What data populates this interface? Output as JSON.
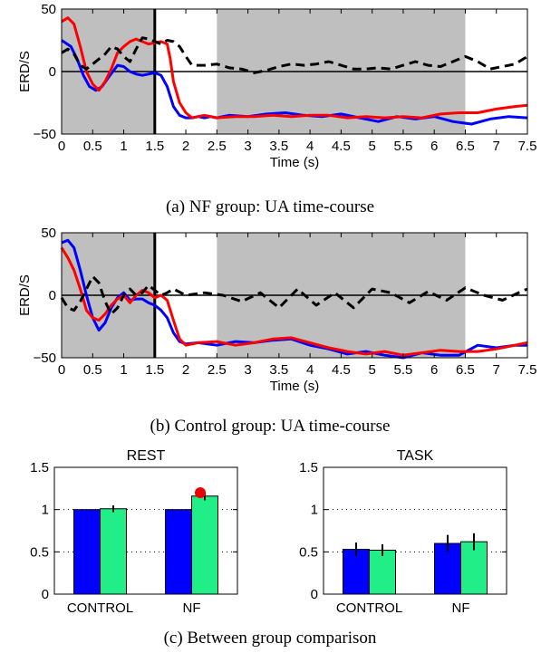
{
  "chart_data": [
    {
      "type": "line",
      "caption": "(a) NF group: UA time-course",
      "xlabel": "Time (s)",
      "ylabel": "ERD/S",
      "xlim": [
        0,
        7.5
      ],
      "ylim": [
        -50,
        50
      ],
      "xticks": [
        0,
        0.5,
        1,
        1.5,
        2,
        2.5,
        3,
        3.5,
        4,
        4.5,
        5,
        5.5,
        6,
        6.5,
        7,
        7.5
      ],
      "xtick_labels": [
        "0",
        "0.5",
        "1",
        "1.5",
        "2",
        "2.5",
        "3",
        "3.5",
        "4",
        "4.5",
        "5",
        "5.5",
        "6",
        "6.5",
        "7",
        "7.5"
      ],
      "yticks": [
        -50,
        0,
        50
      ],
      "ytick_labels": [
        "−50",
        "0",
        "50"
      ],
      "shaded_intervals": [
        [
          0,
          1.5
        ],
        [
          2.5,
          6.5
        ]
      ],
      "vline": 1.5,
      "series": [
        {
          "color": "#0000ff",
          "style": "solid",
          "x": [
            0,
            0.15,
            0.25,
            0.35,
            0.45,
            0.55,
            0.65,
            0.75,
            0.9,
            1.0,
            1.1,
            1.2,
            1.3,
            1.4,
            1.5,
            1.6,
            1.7,
            1.8,
            1.9,
            2.0,
            2.1,
            2.2,
            2.3,
            2.4,
            2.5,
            2.7,
            3.0,
            3.3,
            3.6,
            3.9,
            4.2,
            4.5,
            4.8,
            5.1,
            5.4,
            5.7,
            6.0,
            6.3,
            6.6,
            6.9,
            7.2,
            7.5
          ],
          "y": [
            25,
            20,
            10,
            -3,
            -12,
            -15,
            -12,
            -5,
            5,
            4,
            0,
            -2,
            -3,
            -2,
            -1,
            -3,
            -12,
            -28,
            -35,
            -37,
            -37,
            -36,
            -37,
            -36,
            -37,
            -35,
            -36,
            -34,
            -33,
            -35,
            -36,
            -34,
            -37,
            -40,
            -36,
            -38,
            -36,
            -40,
            -42,
            -38,
            -36,
            -37
          ]
        },
        {
          "color": "#ff0000",
          "style": "solid",
          "x": [
            0,
            0.1,
            0.2,
            0.3,
            0.4,
            0.5,
            0.6,
            0.7,
            0.8,
            0.9,
            1.0,
            1.1,
            1.2,
            1.3,
            1.4,
            1.5,
            1.6,
            1.7,
            1.75,
            1.8,
            1.9,
            2.0,
            2.1,
            2.2,
            2.3,
            2.5,
            2.8,
            3.1,
            3.4,
            3.7,
            4.0,
            4.3,
            4.6,
            4.9,
            5.2,
            5.5,
            5.8,
            6.1,
            6.4,
            6.7,
            7.0,
            7.3,
            7.5
          ],
          "y": [
            40,
            43,
            38,
            20,
            0,
            -10,
            -15,
            -8,
            2,
            15,
            20,
            24,
            26,
            24,
            22,
            23,
            24,
            22,
            10,
            -8,
            -25,
            -33,
            -37,
            -36,
            -35,
            -37,
            -36,
            -36,
            -35,
            -36,
            -35,
            -35,
            -37,
            -36,
            -37,
            -36,
            -37,
            -34,
            -33,
            -33,
            -30,
            -28,
            -27
          ]
        },
        {
          "color": "#000000",
          "style": "dashed",
          "x": [
            0,
            0.1,
            0.2,
            0.3,
            0.4,
            0.5,
            0.6,
            0.7,
            0.8,
            0.9,
            1.0,
            1.1,
            1.2,
            1.3,
            1.4,
            1.5,
            1.6,
            1.7,
            1.8,
            1.9,
            2.0,
            2.1,
            2.3,
            2.5,
            2.7,
            2.9,
            3.1,
            3.3,
            3.5,
            3.7,
            3.9,
            4.1,
            4.3,
            4.5,
            4.7,
            4.9,
            5.1,
            5.3,
            5.5,
            5.7,
            5.9,
            6.1,
            6.3,
            6.5,
            6.7,
            6.9,
            7.1,
            7.3,
            7.5
          ],
          "y": [
            15,
            18,
            14,
            5,
            2,
            6,
            10,
            14,
            20,
            18,
            12,
            8,
            18,
            27,
            26,
            24,
            22,
            25,
            24,
            20,
            12,
            5,
            5,
            6,
            3,
            2,
            -1,
            1,
            4,
            6,
            5,
            6,
            8,
            5,
            2,
            2,
            3,
            2,
            5,
            8,
            5,
            4,
            8,
            12,
            8,
            2,
            4,
            6,
            12
          ]
        }
      ]
    },
    {
      "type": "line",
      "caption": "(b) Control group: UA time-course",
      "xlabel": "Time (s)",
      "ylabel": "ERD/S",
      "xlim": [
        0,
        7.5
      ],
      "ylim": [
        -50,
        50
      ],
      "xticks": [
        0,
        0.5,
        1,
        1.5,
        2,
        2.5,
        3,
        3.5,
        4,
        4.5,
        5,
        5.5,
        6,
        6.5,
        7,
        7.5
      ],
      "xtick_labels": [
        "0",
        "0.5",
        "1",
        "1.5",
        "2",
        "2.5",
        "3",
        "3.5",
        "4",
        "4.5",
        "5",
        "5.5",
        "6",
        "6.5",
        "7",
        "7.5"
      ],
      "yticks": [
        -50,
        0,
        50
      ],
      "ytick_labels": [
        "−50",
        "0",
        "50"
      ],
      "shaded_intervals": [
        [
          0,
          1.5
        ],
        [
          2.5,
          6.5
        ]
      ],
      "vline": 1.5,
      "series": [
        {
          "color": "#0000ff",
          "style": "solid",
          "x": [
            0,
            0.1,
            0.2,
            0.3,
            0.4,
            0.5,
            0.6,
            0.7,
            0.8,
            0.9,
            1.0,
            1.1,
            1.2,
            1.3,
            1.4,
            1.5,
            1.6,
            1.7,
            1.8,
            1.9,
            2.0,
            2.2,
            2.5,
            2.8,
            3.1,
            3.4,
            3.7,
            4.0,
            4.3,
            4.6,
            4.9,
            5.2,
            5.5,
            5.8,
            6.1,
            6.4,
            6.7,
            7.0,
            7.3,
            7.5
          ],
          "y": [
            42,
            44,
            38,
            20,
            0,
            -18,
            -28,
            -22,
            -10,
            -2,
            2,
            -4,
            -3,
            -3,
            -6,
            -8,
            -12,
            -18,
            -30,
            -37,
            -39,
            -38,
            -40,
            -37,
            -38,
            -36,
            -35,
            -40,
            -43,
            -47,
            -45,
            -48,
            -50,
            -46,
            -48,
            -48,
            -40,
            -42,
            -40,
            -40
          ]
        },
        {
          "color": "#ff0000",
          "style": "solid",
          "x": [
            0,
            0.1,
            0.2,
            0.3,
            0.4,
            0.5,
            0.6,
            0.7,
            0.8,
            0.9,
            1.0,
            1.1,
            1.2,
            1.3,
            1.4,
            1.5,
            1.6,
            1.7,
            1.8,
            1.9,
            2.0,
            2.2,
            2.5,
            2.8,
            3.1,
            3.4,
            3.7,
            4.0,
            4.3,
            4.6,
            4.9,
            5.2,
            5.5,
            5.8,
            6.1,
            6.4,
            6.7,
            7.0,
            7.3,
            7.5
          ],
          "y": [
            38,
            30,
            20,
            5,
            -12,
            -18,
            -20,
            -15,
            -8,
            -3,
            0,
            -6,
            0,
            4,
            2,
            -2,
            0,
            -4,
            -20,
            -35,
            -40,
            -38,
            -37,
            -40,
            -38,
            -35,
            -34,
            -38,
            -42,
            -45,
            -47,
            -45,
            -48,
            -46,
            -44,
            -45,
            -45,
            -43,
            -40,
            -38
          ]
        },
        {
          "color": "#000000",
          "style": "dashed",
          "x": [
            0,
            0.1,
            0.2,
            0.3,
            0.4,
            0.5,
            0.6,
            0.7,
            0.8,
            0.9,
            1.0,
            1.1,
            1.2,
            1.3,
            1.4,
            1.5,
            1.6,
            1.7,
            1.8,
            2.0,
            2.3,
            2.6,
            2.9,
            3.2,
            3.5,
            3.8,
            4.1,
            4.4,
            4.7,
            5.0,
            5.3,
            5.6,
            5.9,
            6.2,
            6.5,
            6.8,
            7.1,
            7.4,
            7.5
          ],
          "y": [
            -2,
            -10,
            -12,
            -5,
            5,
            15,
            10,
            -5,
            -15,
            -10,
            0,
            5,
            0,
            2,
            8,
            4,
            0,
            2,
            5,
            0,
            2,
            0,
            -5,
            2,
            -10,
            5,
            -8,
            2,
            -10,
            5,
            2,
            -6,
            3,
            -4,
            6,
            0,
            -4,
            3,
            5
          ]
        }
      ]
    },
    {
      "type": "bar",
      "title": "REST",
      "categories": [
        "CONTROL",
        "NF"
      ],
      "ylim": [
        0,
        1.5
      ],
      "yticks": [
        0,
        0.5,
        1,
        1.5
      ],
      "ytick_labels": [
        "0",
        "0.5",
        "1",
        "1.5"
      ],
      "series": [
        {
          "color": "#0000ff",
          "values": [
            1.0,
            1.0
          ],
          "errors": [
            0.0,
            0.0
          ]
        },
        {
          "color": "#22ee88",
          "values": [
            1.01,
            1.16
          ],
          "errors": [
            0.04,
            0.05
          ]
        }
      ],
      "marker": {
        "category": "NF",
        "value": 1.2,
        "color": "#ee0000"
      }
    },
    {
      "type": "bar",
      "title": "TASK",
      "categories": [
        "CONTROL",
        "NF"
      ],
      "ylim": [
        0,
        1.5
      ],
      "yticks": [
        0,
        0.5,
        1,
        1.5
      ],
      "ytick_labels": [
        "0",
        "0.5",
        "1",
        "1.5"
      ],
      "series": [
        {
          "color": "#0000ff",
          "values": [
            0.53,
            0.6
          ],
          "errors": [
            0.08,
            0.1
          ]
        },
        {
          "color": "#22ee88",
          "values": [
            0.52,
            0.62
          ],
          "errors": [
            0.07,
            0.1
          ]
        }
      ]
    }
  ],
  "captions": {
    "c": "(c) Between group comparison"
  }
}
